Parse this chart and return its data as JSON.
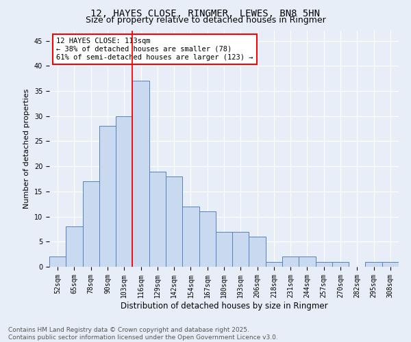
{
  "title1": "12, HAYES CLOSE, RINGMER, LEWES, BN8 5HN",
  "title2": "Size of property relative to detached houses in Ringmer",
  "xlabel": "Distribution of detached houses by size in Ringmer",
  "ylabel": "Number of detached properties",
  "categories": [
    "52sqm",
    "65sqm",
    "78sqm",
    "90sqm",
    "103sqm",
    "116sqm",
    "129sqm",
    "142sqm",
    "154sqm",
    "167sqm",
    "180sqm",
    "193sqm",
    "206sqm",
    "218sqm",
    "231sqm",
    "244sqm",
    "257sqm",
    "270sqm",
    "282sqm",
    "295sqm",
    "308sqm"
  ],
  "values": [
    2,
    8,
    17,
    28,
    30,
    37,
    19,
    18,
    12,
    11,
    7,
    7,
    6,
    1,
    2,
    2,
    1,
    1,
    0,
    1,
    1
  ],
  "bar_color": "#c8d9f0",
  "bar_edge_color": "#5580bb",
  "red_line_index": 5,
  "annotation_line1": "12 HAYES CLOSE: 113sqm",
  "annotation_line2": "← 38% of detached houses are smaller (78)",
  "annotation_line3": "61% of semi-detached houses are larger (123) →",
  "annotation_box_color": "white",
  "annotation_box_edge": "red",
  "ylim": [
    0,
    47
  ],
  "yticks": [
    0,
    5,
    10,
    15,
    20,
    25,
    30,
    35,
    40,
    45
  ],
  "bg_color": "#e8eef7",
  "footer1": "Contains HM Land Registry data © Crown copyright and database right 2025.",
  "footer2": "Contains public sector information licensed under the Open Government Licence v3.0.",
  "title_fontsize": 10,
  "subtitle_fontsize": 9,
  "xlabel_fontsize": 8.5,
  "ylabel_fontsize": 8,
  "tick_fontsize": 7,
  "annotation_fontsize": 7.5,
  "footer_fontsize": 6.5
}
